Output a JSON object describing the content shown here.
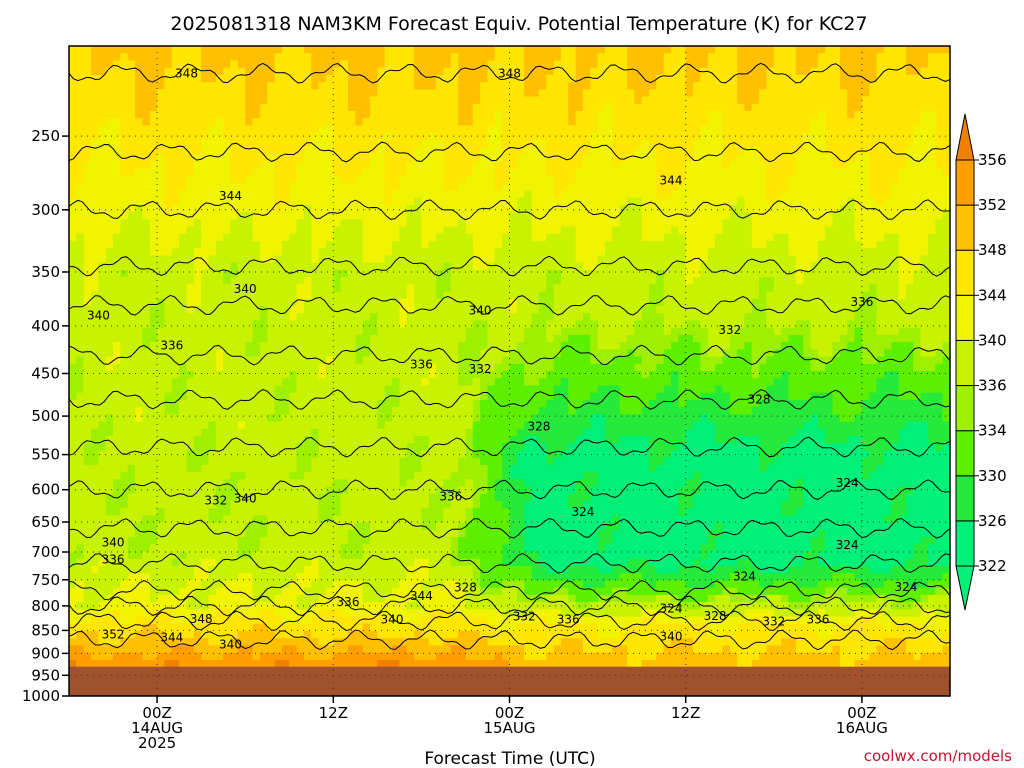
{
  "chart_data": {
    "type": "heatmap",
    "title": "2025081318 NAM3KM Forecast Equiv. Potential Temperature (K) for KC27",
    "xlabel": "Forecast Time (UTC)",
    "ylabel": "",
    "y_scale": "log",
    "y_reversed": true,
    "ylim": [
      1000,
      200
    ],
    "y_ticks": [
      250,
      300,
      350,
      400,
      450,
      500,
      550,
      600,
      650,
      700,
      750,
      800,
      850,
      900,
      950,
      1000
    ],
    "x_range_hours_from_start": [
      0,
      60
    ],
    "x_ticks": [
      {
        "hour": 6,
        "lines": [
          "00Z",
          "14AUG",
          "2025"
        ]
      },
      {
        "hour": 18,
        "lines": [
          "12Z"
        ]
      },
      {
        "hour": 30,
        "lines": [
          "00Z",
          "15AUG"
        ]
      },
      {
        "hour": 42,
        "lines": [
          "12Z"
        ]
      },
      {
        "hour": 54,
        "lines": [
          "00Z",
          "16AUG"
        ]
      }
    ],
    "ground_level_hpa": 930,
    "grid": true,
    "colorbar": {
      "levels": [
        322,
        326,
        330,
        334,
        336,
        340,
        344,
        348,
        352,
        356
      ],
      "colors": [
        "#00f07a",
        "#26ea3a",
        "#5cf000",
        "#9ef000",
        "#c8f200",
        "#f0f400",
        "#ffe600",
        "#ffc000",
        "#ff9e00",
        "#f08000"
      ]
    },
    "contour_labels": [
      {
        "hour": 8,
        "p": 214,
        "text": "348"
      },
      {
        "hour": 30,
        "p": 214,
        "text": "348"
      },
      {
        "hour": 11,
        "p": 290,
        "text": "344"
      },
      {
        "hour": 41,
        "p": 279,
        "text": "344"
      },
      {
        "hour": 12,
        "p": 365,
        "text": "340"
      },
      {
        "hour": 2,
        "p": 390,
        "text": "340"
      },
      {
        "hour": 28,
        "p": 385,
        "text": "340"
      },
      {
        "hour": 54,
        "p": 377,
        "text": "336"
      },
      {
        "hour": 45,
        "p": 404,
        "text": "332"
      },
      {
        "hour": 7,
        "p": 420,
        "text": "336"
      },
      {
        "hour": 24,
        "p": 440,
        "text": "336"
      },
      {
        "hour": 28,
        "p": 445,
        "text": "332"
      },
      {
        "hour": 47,
        "p": 480,
        "text": "328"
      },
      {
        "hour": 32,
        "p": 513,
        "text": "328"
      },
      {
        "hour": 53,
        "p": 590,
        "text": "324"
      },
      {
        "hour": 10,
        "p": 616,
        "text": "332"
      },
      {
        "hour": 12,
        "p": 613,
        "text": "340"
      },
      {
        "hour": 26,
        "p": 610,
        "text": "336"
      },
      {
        "hour": 35,
        "p": 634,
        "text": "324"
      },
      {
        "hour": 3,
        "p": 684,
        "text": "340"
      },
      {
        "hour": 3,
        "p": 713,
        "text": "336"
      },
      {
        "hour": 53,
        "p": 688,
        "text": "324"
      },
      {
        "hour": 46,
        "p": 744,
        "text": "324"
      },
      {
        "hour": 57,
        "p": 763,
        "text": "324"
      },
      {
        "hour": 27,
        "p": 764,
        "text": "328"
      },
      {
        "hour": 24,
        "p": 781,
        "text": "344"
      },
      {
        "hour": 19,
        "p": 792,
        "text": "336"
      },
      {
        "hour": 41,
        "p": 805,
        "text": "324"
      },
      {
        "hour": 44,
        "p": 820,
        "text": "328"
      },
      {
        "hour": 31,
        "p": 821,
        "text": "332"
      },
      {
        "hour": 34,
        "p": 827,
        "text": "336"
      },
      {
        "hour": 48,
        "p": 832,
        "text": "332"
      },
      {
        "hour": 51,
        "p": 827,
        "text": "336"
      },
      {
        "hour": 9,
        "p": 826,
        "text": "348"
      },
      {
        "hour": 22,
        "p": 827,
        "text": "340"
      },
      {
        "hour": 3,
        "p": 859,
        "text": "352"
      },
      {
        "hour": 7,
        "p": 865,
        "text": "344"
      },
      {
        "hour": 11,
        "p": 880,
        "text": "340"
      },
      {
        "hour": 41,
        "p": 863,
        "text": "340"
      }
    ]
  },
  "credit": "coolwx.com/models"
}
